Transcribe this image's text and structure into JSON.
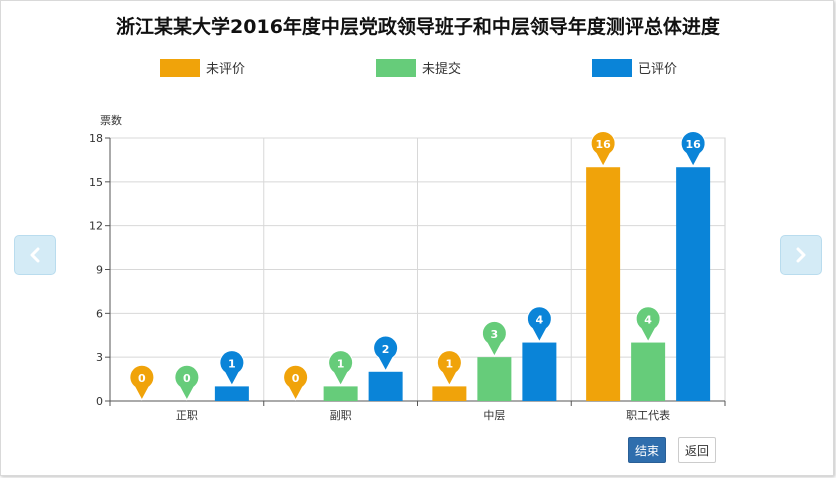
{
  "title": "浙江某某大学2016年度中层党政领导班子和中层领导年度测评总体进度",
  "buttons": {
    "finish": "结束",
    "back": "返回"
  },
  "nav": {
    "prev_icon": "chevron-left-icon",
    "next_icon": "chevron-right-icon"
  },
  "chart_data": {
    "type": "bar",
    "ylabel": "票数",
    "ylim": [
      0,
      18
    ],
    "yticks": [
      "0",
      "3",
      "6",
      "9",
      "12",
      "15",
      "18"
    ],
    "categories": [
      "正职",
      "副职",
      "中层",
      "职工代表"
    ],
    "legend_position": "top",
    "grid": true,
    "series": [
      {
        "name": "未评价",
        "color": "#f0a30a",
        "values": [
          0,
          0,
          1,
          16
        ]
      },
      {
        "name": "未提交",
        "color": "#66cc7a",
        "values": [
          0,
          1,
          3,
          4
        ]
      },
      {
        "name": "已评价",
        "color": "#0a84d8",
        "values": [
          1,
          2,
          4,
          16
        ]
      }
    ]
  }
}
